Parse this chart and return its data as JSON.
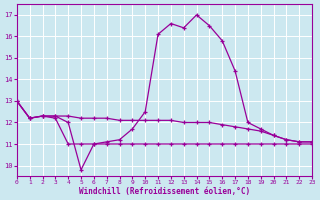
{
  "xlabel": "Windchill (Refroidissement éolien,°C)",
  "xlim": [
    0,
    23
  ],
  "ylim": [
    9.5,
    17.5
  ],
  "yticks": [
    10,
    11,
    12,
    13,
    14,
    15,
    16,
    17
  ],
  "xticks": [
    0,
    1,
    2,
    3,
    4,
    5,
    6,
    7,
    8,
    9,
    10,
    11,
    12,
    13,
    14,
    15,
    16,
    17,
    18,
    19,
    20,
    21,
    22,
    23
  ],
  "bg_color": "#cce8f0",
  "line_color": "#990099",
  "grid_color": "#ffffff",
  "line1_x": [
    0,
    1,
    2,
    3,
    4,
    5,
    6,
    7,
    8,
    9,
    10,
    11,
    12,
    13,
    14,
    15,
    16,
    17,
    18,
    19,
    20,
    21,
    22,
    23
  ],
  "line1_y": [
    13.0,
    12.2,
    12.3,
    12.2,
    11.0,
    11.0,
    11.0,
    11.0,
    11.0,
    11.0,
    11.0,
    11.0,
    11.0,
    11.0,
    11.0,
    11.0,
    11.0,
    11.0,
    11.0,
    11.0,
    11.0,
    11.0,
    11.0,
    11.0
  ],
  "line2_x": [
    0,
    1,
    2,
    3,
    4,
    5,
    6,
    7,
    8,
    9,
    10,
    11,
    12,
    13,
    14,
    15,
    16,
    17,
    18,
    19,
    20,
    21,
    22,
    23
  ],
  "line2_y": [
    13.0,
    12.2,
    12.3,
    12.3,
    12.3,
    12.2,
    12.2,
    12.2,
    12.1,
    12.1,
    12.1,
    12.1,
    12.1,
    12.0,
    12.0,
    12.0,
    11.9,
    11.8,
    11.7,
    11.6,
    11.4,
    11.2,
    11.1,
    11.1
  ],
  "line3_x": [
    0,
    1,
    2,
    3,
    4,
    5,
    6,
    7,
    8,
    9,
    10,
    11,
    12,
    13,
    14,
    15,
    16,
    17,
    18,
    19,
    20,
    21,
    22,
    23
  ],
  "line3_y": [
    13.0,
    12.2,
    12.3,
    12.3,
    12.0,
    9.8,
    11.0,
    11.1,
    11.2,
    11.7,
    12.5,
    16.1,
    16.6,
    16.4,
    17.0,
    16.5,
    15.8,
    14.4,
    12.0,
    11.7,
    11.4,
    11.2,
    11.1,
    11.1
  ]
}
